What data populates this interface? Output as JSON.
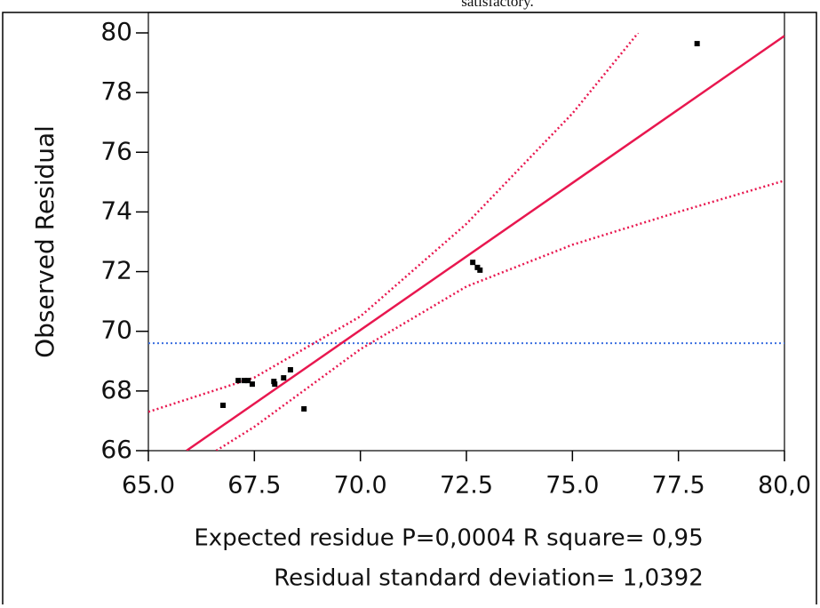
{
  "chart_data": {
    "type": "scatter",
    "title": "satisfactory.",
    "y_label": "Observed Residual",
    "x_label": "Expected residue P=0,0004 R square= 0,95",
    "x_label_2": "Residual standard deviation= 1,0392",
    "xlim": [
      65,
      80
    ],
    "ylim": [
      66,
      80
    ],
    "xticks": [
      {
        "value": 65,
        "label": "65.0"
      },
      {
        "value": 67.5,
        "label": "67.5"
      },
      {
        "value": 70,
        "label": "70.0"
      },
      {
        "value": 72.5,
        "label": "72.5"
      },
      {
        "value": 75,
        "label": "75.0"
      },
      {
        "value": 77.5,
        "label": "77.5"
      },
      {
        "value": 80,
        "label": "80,0"
      }
    ],
    "yticks": [
      66,
      68,
      70,
      72,
      74,
      76,
      78,
      80
    ],
    "points": {
      "color": "#000000",
      "x": [
        66.76,
        67.12,
        67.26,
        67.35,
        67.45,
        67.96,
        67.98,
        68.19,
        68.35,
        68.67,
        72.65,
        72.76,
        72.82,
        77.94
      ],
      "y": [
        67.52,
        68.35,
        68.35,
        68.35,
        68.23,
        68.32,
        68.23,
        68.44,
        68.71,
        67.4,
        72.31,
        72.14,
        72.05,
        79.64
      ]
    },
    "fit_line": {
      "color": "#e8174f",
      "x": [
        65.9,
        80
      ],
      "y": [
        66,
        79.9
      ]
    },
    "confidence_upper": {
      "color": "#e8174f",
      "x": [
        65,
        67.5,
        70,
        72.5,
        75,
        76.55
      ],
      "y": [
        67.3,
        68.45,
        70.5,
        73.6,
        77.3,
        80
      ]
    },
    "confidence_lower": {
      "color": "#e8174f",
      "x": [
        66.6,
        67.5,
        70,
        72.5,
        75,
        77.5,
        80
      ],
      "y": [
        66,
        66.8,
        69.4,
        71.5,
        72.9,
        74,
        75.05
      ]
    },
    "mean_line": {
      "color": "#3b6fe0",
      "y": 69.6
    }
  }
}
